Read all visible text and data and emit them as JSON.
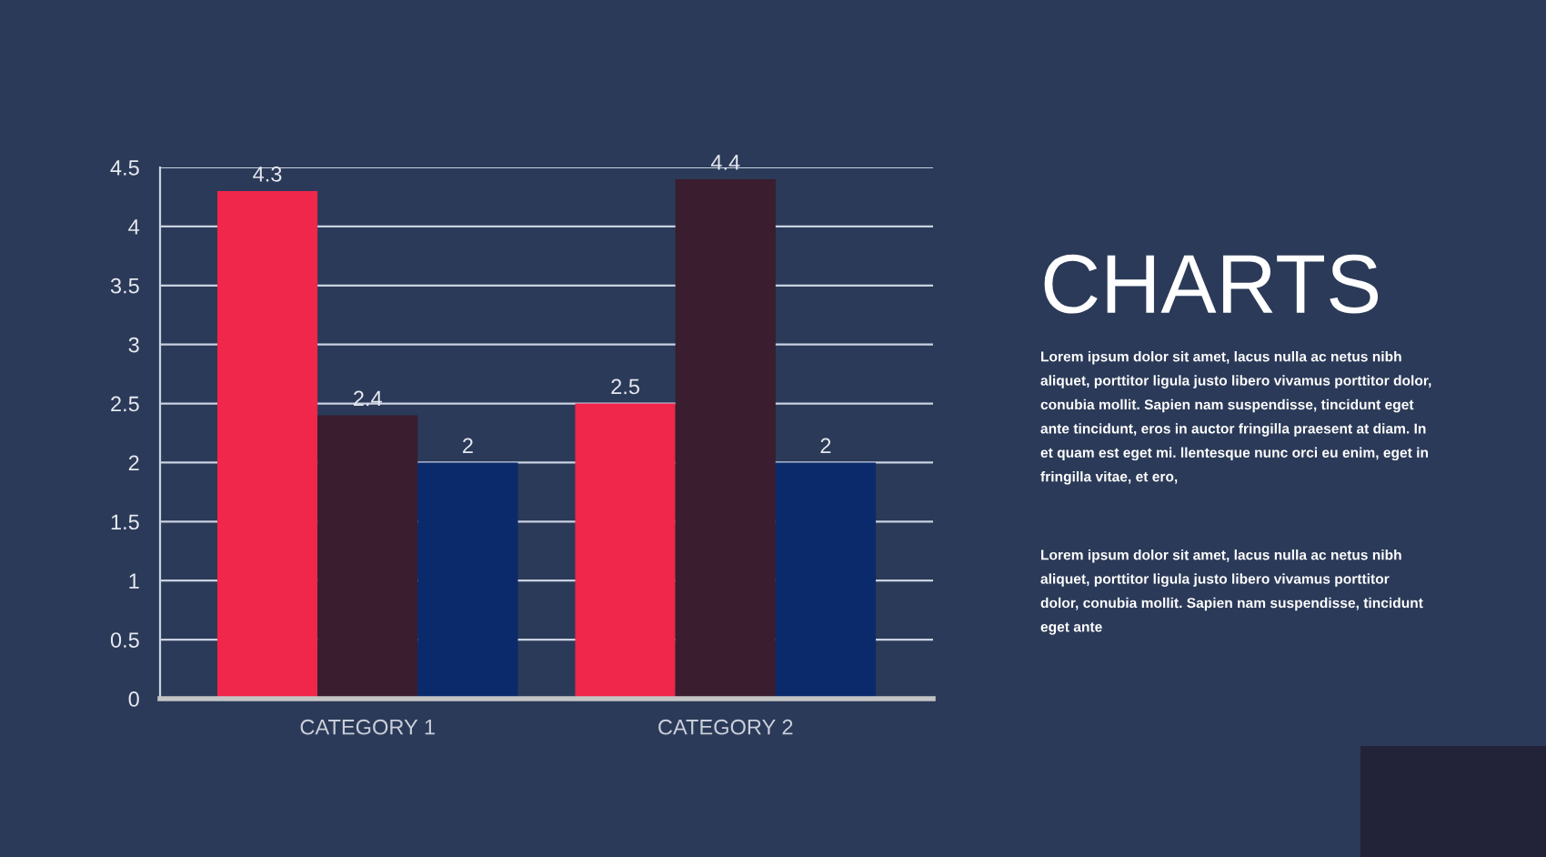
{
  "chart_data": {
    "type": "bar",
    "title": "CHARTS",
    "categories": [
      "CATEGORY 1",
      "CATEGORY 2"
    ],
    "series": [
      {
        "color": "#f0264a",
        "values": [
          4.3,
          2.5
        ]
      },
      {
        "color": "#3a1d2e",
        "values": [
          2.4,
          4.4
        ]
      },
      {
        "color": "#0b2a6b",
        "values": [
          2,
          2
        ]
      }
    ],
    "ylim": [
      0,
      4.5
    ],
    "yticks": [
      0,
      0.5,
      1,
      1.5,
      2,
      2.5,
      3,
      3.5,
      4,
      4.5
    ],
    "grid": "y",
    "data_labels": true,
    "annotations": [
      "Lorem ipsum dolor sit amet, lacus nulla ac netus nibh\naliquet, porttitor ligula justo libero vivamus porttitor dolor,\nconubia mollit. Sapien nam suspendisse, tincidunt eget\nante tincidunt, eros in auctor fringilla praesent at diam. In\net quam est eget mi. llentesque nunc orci eu enim, eget in\nfringilla vitae, et ero,",
      "Lorem ipsum dolor sit amet, lacus nulla ac netus nibh\naliquet, porttitor ligula justo libero vivamus porttitor\ndolor, conubia mollit. Sapien nam suspendisse, tincidunt\neget ante"
    ]
  }
}
